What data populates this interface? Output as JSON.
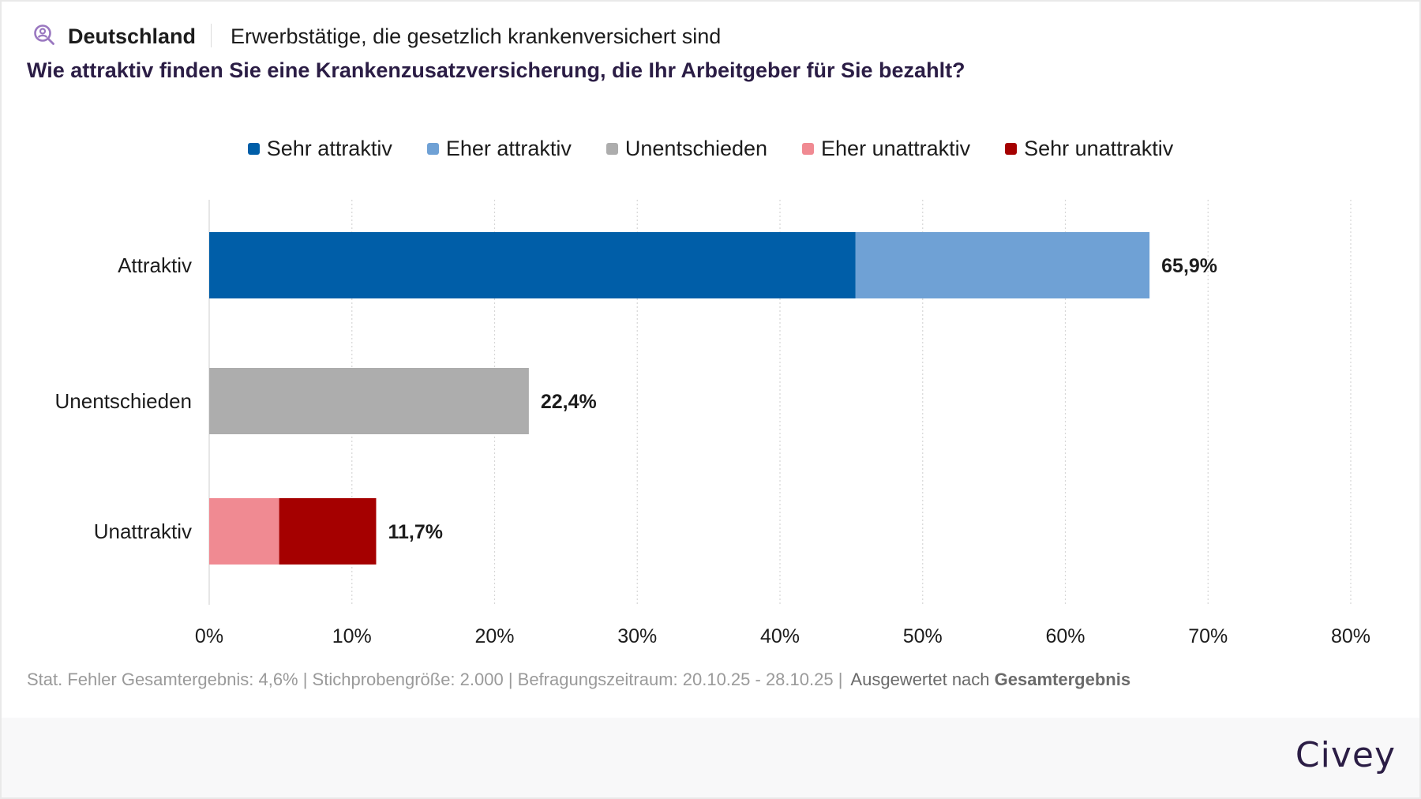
{
  "header": {
    "icon": "person-search-icon",
    "region": "Deutschland",
    "population": "Erwerbstätige, die gesetzlich krankenversichert sind",
    "question": "Wie attraktiv finden Sie eine Krankenzusatzversicherung, die Ihr Arbeitgeber für Sie bezahlt?"
  },
  "legend": [
    {
      "label": "Sehr attraktiv",
      "color": "#005ea8"
    },
    {
      "label": "Eher attraktiv",
      "color": "#6fa1d5"
    },
    {
      "label": "Unentschieden",
      "color": "#adadad"
    },
    {
      "label": "Eher unattraktiv",
      "color": "#f08a92"
    },
    {
      "label": "Sehr unattraktiv",
      "color": "#a50000"
    }
  ],
  "chart_data": {
    "type": "bar",
    "orientation": "horizontal",
    "stacked": true,
    "title": "Wie attraktiv finden Sie eine Krankenzusatzversicherung, die Ihr Arbeitgeber für Sie bezahlt?",
    "xlabel": "",
    "ylabel": "",
    "xlim": [
      0,
      80
    ],
    "x_ticks": [
      "0%",
      "10%",
      "20%",
      "30%",
      "40%",
      "50%",
      "60%",
      "70%",
      "80%"
    ],
    "x_tick_values": [
      0,
      10,
      20,
      30,
      40,
      50,
      60,
      70,
      80
    ],
    "grid": true,
    "legend_position": "top-center",
    "categories": [
      "Attraktiv",
      "Unentschieden",
      "Unattraktiv"
    ],
    "totals": [
      65.9,
      22.4,
      11.7
    ],
    "total_labels": [
      "65,9%",
      "22,4%",
      "11,7%"
    ],
    "bars": [
      {
        "category": "Attraktiv",
        "segments": [
          {
            "series": "Sehr attraktiv",
            "value": 45.3,
            "color": "#005ea8"
          },
          {
            "series": "Eher attraktiv",
            "value": 20.6,
            "color": "#6fa1d5"
          }
        ]
      },
      {
        "category": "Unentschieden",
        "segments": [
          {
            "series": "Unentschieden",
            "value": 22.4,
            "color": "#adadad"
          }
        ]
      },
      {
        "category": "Unattraktiv",
        "segments": [
          {
            "series": "Eher unattraktiv",
            "value": 4.9,
            "color": "#f08a92"
          },
          {
            "series": "Sehr unattraktiv",
            "value": 6.8,
            "color": "#a50000"
          }
        ]
      }
    ]
  },
  "footer": {
    "meta": "Stat. Fehler Gesamtergebnis: 4,6% | Stichprobengröße: 2.000 | Befragungszeitraum: 20.10.25 - 28.10.25 |",
    "eval_prefix": "Ausgewertet nach",
    "eval_value": "Gesamtergebnis"
  },
  "brand": "Civey"
}
